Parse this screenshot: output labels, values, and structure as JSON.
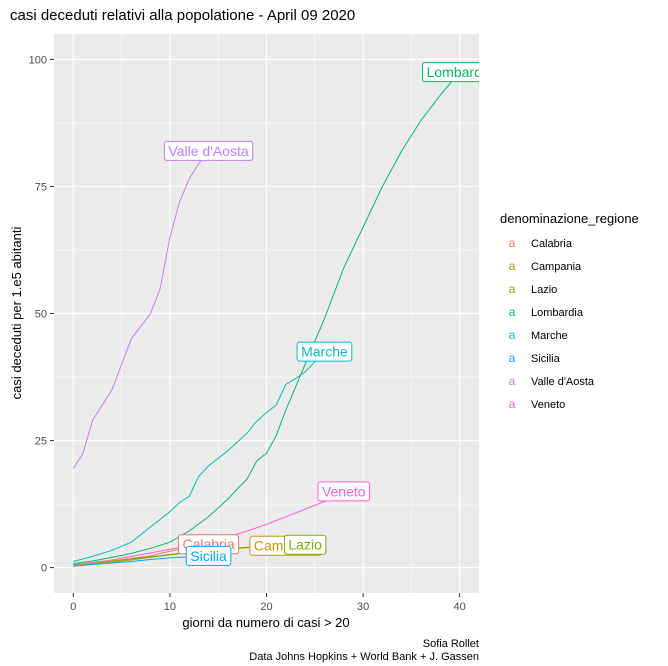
{
  "chart_data": {
    "type": "line",
    "title": "casi deceduti relativi alla popolatione - April 09 2020",
    "xlabel": "giorni da numero di casi >  20",
    "ylabel": "casi deceduti  per 1.e5 abitanti",
    "xlim": [
      -2,
      42
    ],
    "ylim": [
      -5,
      105
    ],
    "x_ticks": [
      "0",
      "10",
      "20",
      "30",
      "40"
    ],
    "y_ticks": [
      "0",
      "25",
      "50",
      "75",
      "100"
    ],
    "grid": true,
    "legend_position": "right",
    "legend_title": "denominazione_regione",
    "series": [
      {
        "name": "Calabria",
        "color": "#F8766D",
        "label": "Calabria",
        "points": [
          [
            0,
            0.5
          ],
          [
            2,
            0.9
          ],
          [
            4,
            1.3
          ],
          [
            6,
            1.8
          ],
          [
            8,
            2.3
          ],
          [
            9,
            2.8
          ],
          [
            10,
            3.2
          ],
          [
            11,
            3.6
          ],
          [
            12,
            4.0
          ],
          [
            13,
            4.3
          ],
          [
            14,
            4.6
          ]
        ]
      },
      {
        "name": "Campania",
        "color": "#CD9600",
        "label": "Campania",
        "points": [
          [
            0,
            0.3
          ],
          [
            2,
            0.7
          ],
          [
            4,
            1.1
          ],
          [
            6,
            1.5
          ],
          [
            8,
            2.0
          ],
          [
            10,
            2.5
          ],
          [
            12,
            2.9
          ],
          [
            14,
            3.3
          ],
          [
            16,
            3.6
          ],
          [
            18,
            3.9
          ],
          [
            20,
            4.1
          ],
          [
            22,
            4.3
          ]
        ]
      },
      {
        "name": "Lazio",
        "color": "#7CAE00",
        "label": "Lazio",
        "points": [
          [
            0,
            0.5
          ],
          [
            2,
            0.9
          ],
          [
            4,
            1.3
          ],
          [
            6,
            1.7
          ],
          [
            8,
            2.1
          ],
          [
            10,
            2.6
          ],
          [
            12,
            3.0
          ],
          [
            14,
            3.4
          ],
          [
            16,
            3.7
          ],
          [
            18,
            4.0
          ],
          [
            20,
            4.2
          ],
          [
            22,
            4.4
          ],
          [
            24,
            4.5
          ]
        ]
      },
      {
        "name": "Lombardia",
        "color": "#00BE67",
        "label": "Lombardia",
        "points": [
          [
            0,
            0.8
          ],
          [
            2,
            1.3
          ],
          [
            4,
            2.0
          ],
          [
            6,
            2.8
          ],
          [
            8,
            3.8
          ],
          [
            10,
            5.0
          ],
          [
            12,
            7.2
          ],
          [
            14,
            10.0
          ],
          [
            16,
            13.5
          ],
          [
            18,
            17.5
          ],
          [
            19,
            21.0
          ],
          [
            20,
            22.5
          ],
          [
            21,
            26.0
          ],
          [
            22,
            31.0
          ],
          [
            24,
            40.0
          ],
          [
            26,
            49.0
          ],
          [
            28,
            59.0
          ],
          [
            30,
            67.0
          ],
          [
            32,
            75.0
          ],
          [
            34,
            82.0
          ],
          [
            36,
            88.0
          ],
          [
            38,
            93.0
          ],
          [
            40,
            97.5
          ]
        ]
      },
      {
        "name": "Marche",
        "color": "#00BFC4",
        "label": "Marche",
        "points": [
          [
            0,
            1.2
          ],
          [
            2,
            2.2
          ],
          [
            4,
            3.4
          ],
          [
            6,
            5.0
          ],
          [
            8,
            8.0
          ],
          [
            10,
            11.0
          ],
          [
            11,
            12.8
          ],
          [
            12,
            14.0
          ],
          [
            13,
            18.0
          ],
          [
            14,
            20.0
          ],
          [
            15,
            21.5
          ],
          [
            16,
            23.0
          ],
          [
            18,
            26.5
          ],
          [
            19,
            28.8
          ],
          [
            20,
            30.5
          ],
          [
            21,
            32.0
          ],
          [
            22,
            36.0
          ],
          [
            23,
            37.2
          ],
          [
            24,
            38.5
          ],
          [
            25,
            40.5
          ],
          [
            26,
            42.5
          ]
        ]
      },
      {
        "name": "Sicilia",
        "color": "#00A9FF",
        "label": "Sicilia",
        "points": [
          [
            0,
            0.3
          ],
          [
            2,
            0.6
          ],
          [
            4,
            0.9
          ],
          [
            6,
            1.2
          ],
          [
            8,
            1.6
          ],
          [
            10,
            1.9
          ],
          [
            12,
            2.1
          ],
          [
            14,
            2.3
          ]
        ]
      },
      {
        "name": "Valle d'Aosta",
        "color": "#C77CFF",
        "label": "Valle d'Aosta",
        "points": [
          [
            0,
            19.5
          ],
          [
            1,
            22.5
          ],
          [
            2,
            29.0
          ],
          [
            3,
            32.0
          ],
          [
            4,
            35.0
          ],
          [
            5,
            40.0
          ],
          [
            6,
            45.0
          ],
          [
            7,
            47.5
          ],
          [
            8,
            50.0
          ],
          [
            9,
            55.0
          ],
          [
            10,
            65.0
          ],
          [
            11,
            72.0
          ],
          [
            12,
            76.5
          ],
          [
            13,
            79.5
          ],
          [
            14,
            82.0
          ]
        ]
      },
      {
        "name": "Veneto",
        "color": "#FF61CC",
        "label": "Veneto",
        "points": [
          [
            0,
            0.6
          ],
          [
            2,
            1.0
          ],
          [
            4,
            1.5
          ],
          [
            6,
            2.2
          ],
          [
            8,
            2.9
          ],
          [
            10,
            3.6
          ],
          [
            12,
            4.3
          ],
          [
            14,
            5.0
          ],
          [
            16,
            6.0
          ],
          [
            18,
            7.2
          ],
          [
            20,
            8.5
          ],
          [
            22,
            10.0
          ],
          [
            24,
            11.5
          ],
          [
            26,
            13.0
          ],
          [
            28,
            15.0
          ]
        ]
      }
    ]
  },
  "caption": {
    "line1": "Sofia Rollet",
    "line2": "Data Johns Hopkins + World Bank + J. Gassen"
  }
}
